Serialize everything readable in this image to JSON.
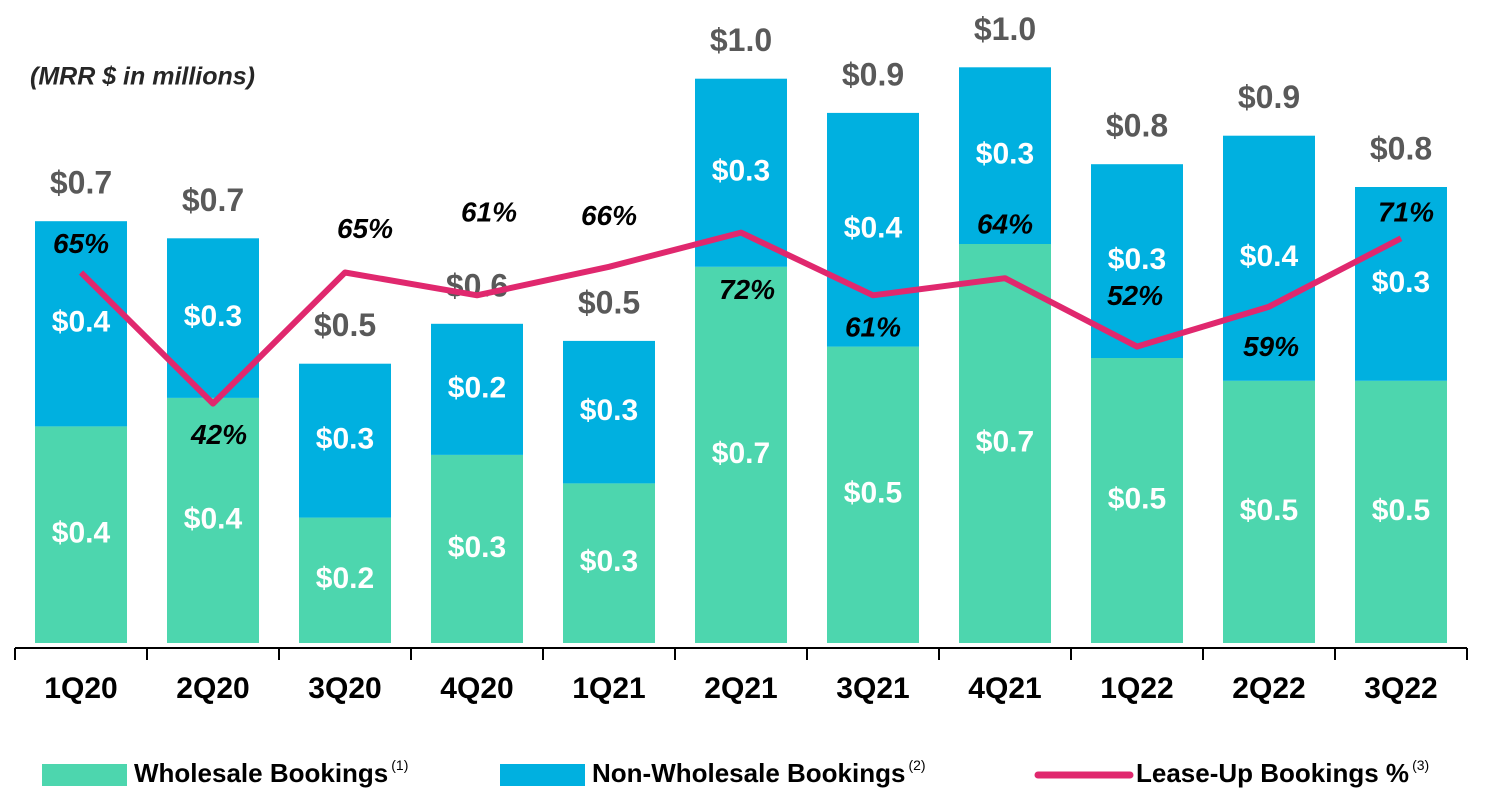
{
  "chart_data": {
    "type": "stacked_bar_line",
    "annotation": "(MRR $ in millions)",
    "categories": [
      "1Q20",
      "2Q20",
      "3Q20",
      "4Q20",
      "1Q21",
      "2Q21",
      "3Q21",
      "4Q21",
      "1Q22",
      "2Q22",
      "3Q22"
    ],
    "series": [
      {
        "name": "Wholesale Bookings",
        "note": "(1)",
        "color": "#4dd6ae",
        "kind": "bar",
        "values": [
          0.38,
          0.43,
          0.22,
          0.33,
          0.28,
          0.66,
          0.52,
          0.7,
          0.5,
          0.46,
          0.46
        ],
        "value_labels": [
          "$0.4",
          "$0.4",
          "$0.2",
          "$0.3",
          "$0.3",
          "$0.7",
          "$0.5",
          "$0.7",
          "$0.5",
          "$0.5",
          "$0.5"
        ]
      },
      {
        "name": "Non-Wholesale Bookings",
        "note": "(2)",
        "color": "#00b0e0",
        "kind": "bar",
        "values": [
          0.36,
          0.28,
          0.27,
          0.23,
          0.25,
          0.33,
          0.41,
          0.31,
          0.34,
          0.43,
          0.34
        ],
        "value_labels": [
          "$0.4",
          "$0.3",
          "$0.3",
          "$0.2",
          "$0.3",
          "$0.3",
          "$0.4",
          "$0.3",
          "$0.3",
          "$0.4",
          "$0.3"
        ]
      },
      {
        "name": "Lease-Up Bookings %",
        "note": "(3)",
        "color": "#e0286e",
        "kind": "line",
        "axis": "y2",
        "values": [
          65,
          42,
          65,
          61,
          66,
          72,
          61,
          64,
          52,
          59,
          71
        ],
        "value_labels": [
          "65%",
          "42%",
          "65%",
          "61%",
          "66%",
          "72%",
          "61%",
          "64%",
          "52%",
          "59%",
          "71%"
        ]
      }
    ],
    "total_labels": [
      "$0.7",
      "$0.7",
      "$0.5",
      "$0.6",
      "$0.5",
      "$1.0",
      "$0.9",
      "$1.0",
      "$0.8",
      "$0.9",
      "$0.8"
    ],
    "ylim": [
      0,
      1
    ],
    "y2lim": [
      0,
      100
    ]
  }
}
